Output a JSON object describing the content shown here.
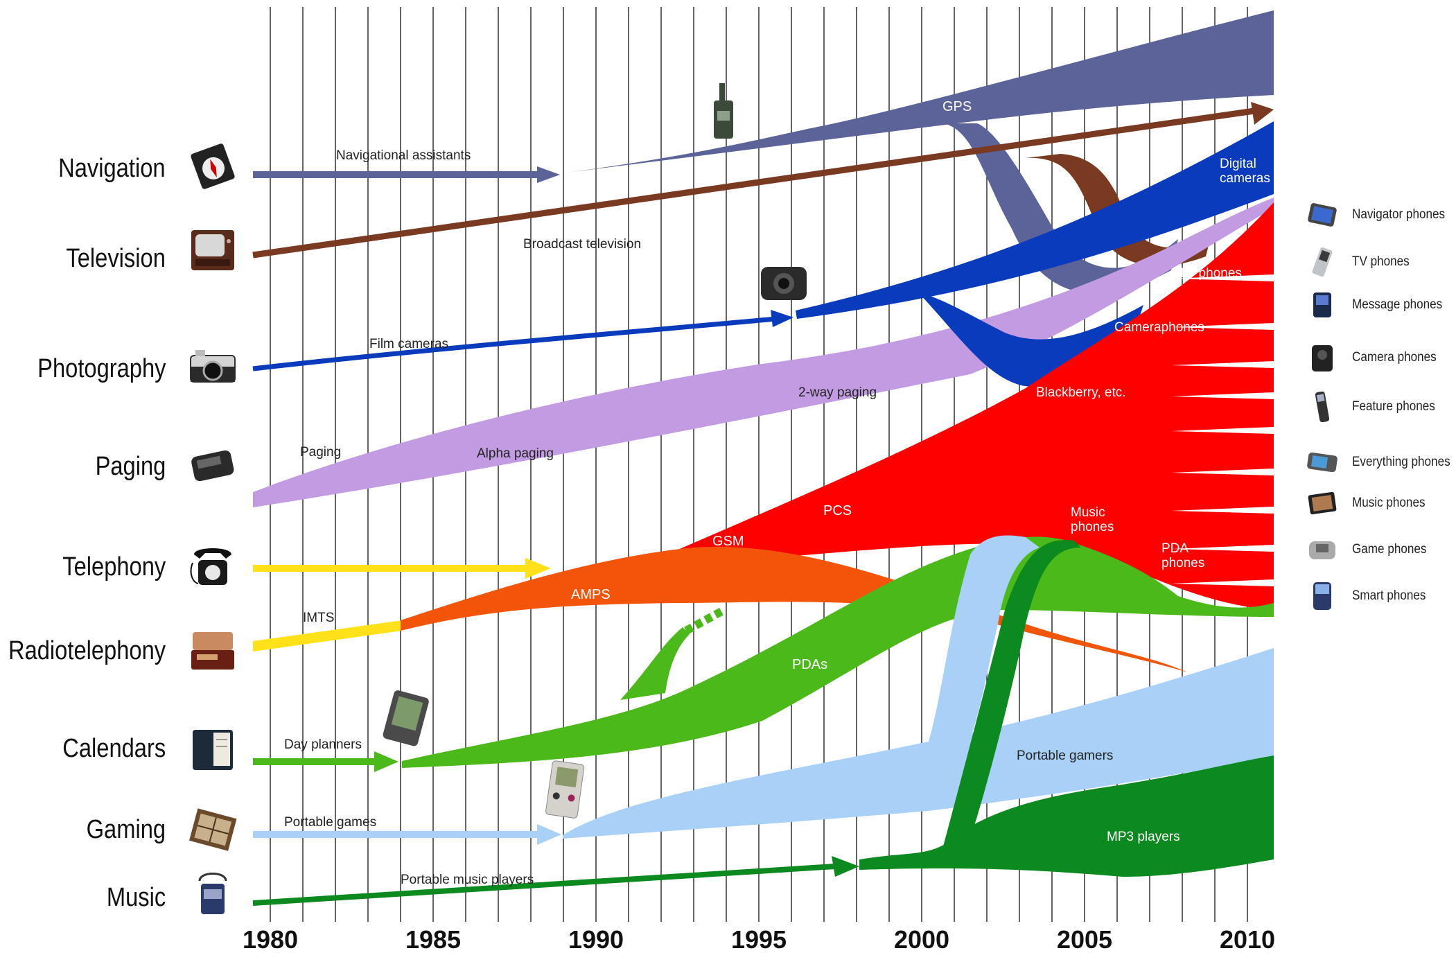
{
  "categories": [
    {
      "label": "Navigation",
      "icon": "compass-icon"
    },
    {
      "label": "Television",
      "icon": "tv-set-icon"
    },
    {
      "label": "Photography",
      "icon": "film-camera-icon"
    },
    {
      "label": "Paging",
      "icon": "pager-icon"
    },
    {
      "label": "Telephony",
      "icon": "desk-phone-icon"
    },
    {
      "label": "Radiotelephony",
      "icon": "radio-phone-icon"
    },
    {
      "label": "Calendars",
      "icon": "day-planner-icon"
    },
    {
      "label": "Gaming",
      "icon": "game-board-icon"
    },
    {
      "label": "Music",
      "icon": "walkman-icon"
    }
  ],
  "axis": {
    "ticks": [
      "1980",
      "1985",
      "1990",
      "1995",
      "2000",
      "2005",
      "2010"
    ]
  },
  "flows": {
    "navigational_assistants": "Navigational assistants",
    "gps": "GPS",
    "broadcast_television": "Broadcast television",
    "digital_cameras_1": "Digital",
    "digital_cameras_2": "cameras",
    "tv_phones": "TV phones",
    "cameraphones": "Cameraphones",
    "film_cameras": "Film cameras",
    "two_way_paging": "2-way paging",
    "blackberry": "Blackberry, etc.",
    "paging": "Paging",
    "alpha_paging": "Alpha paging",
    "pcs": "PCS",
    "gsm": "GSM",
    "amps": "AMPS",
    "music_phones_1": "Music",
    "music_phones_2": "phones",
    "pda_phones_1": "PDA",
    "pda_phones_2": "phones",
    "imts": "IMTS",
    "pdas": "PDAs",
    "day_planners": "Day planners",
    "portable_gamers": "Portable gamers",
    "portable_games": "Portable games",
    "mp3_players": "MP3 players",
    "portable_music_players": "Portable music players"
  },
  "colors": {
    "navigation": "#5b6399",
    "television": "#7a3a22",
    "photography": "#0a3bbd",
    "paging": "#c29be3",
    "telephony": "#ffe21a",
    "radiotelephony": "#f2550a",
    "cellular": "#ff0000",
    "calendars": "#4cb91a",
    "gaming": "#a9d0f7",
    "music": "#0c8a20"
  },
  "phones": [
    {
      "label": "Navigator phones",
      "icon": "navigator-phone-icon"
    },
    {
      "label": "TV phones",
      "icon": "tv-phone-icon"
    },
    {
      "label": "Message phones",
      "icon": "message-phone-icon"
    },
    {
      "label": "Camera phones",
      "icon": "camera-phone-icon"
    },
    {
      "label": "Feature phones",
      "icon": "feature-phone-icon"
    },
    {
      "label": "Everything phones",
      "icon": "everything-phone-icon"
    },
    {
      "label": "Music phones",
      "icon": "music-phone-icon"
    },
    {
      "label": "Game phones",
      "icon": "game-phone-icon"
    },
    {
      "label": "Smart phones",
      "icon": "smart-phone-icon"
    }
  ]
}
